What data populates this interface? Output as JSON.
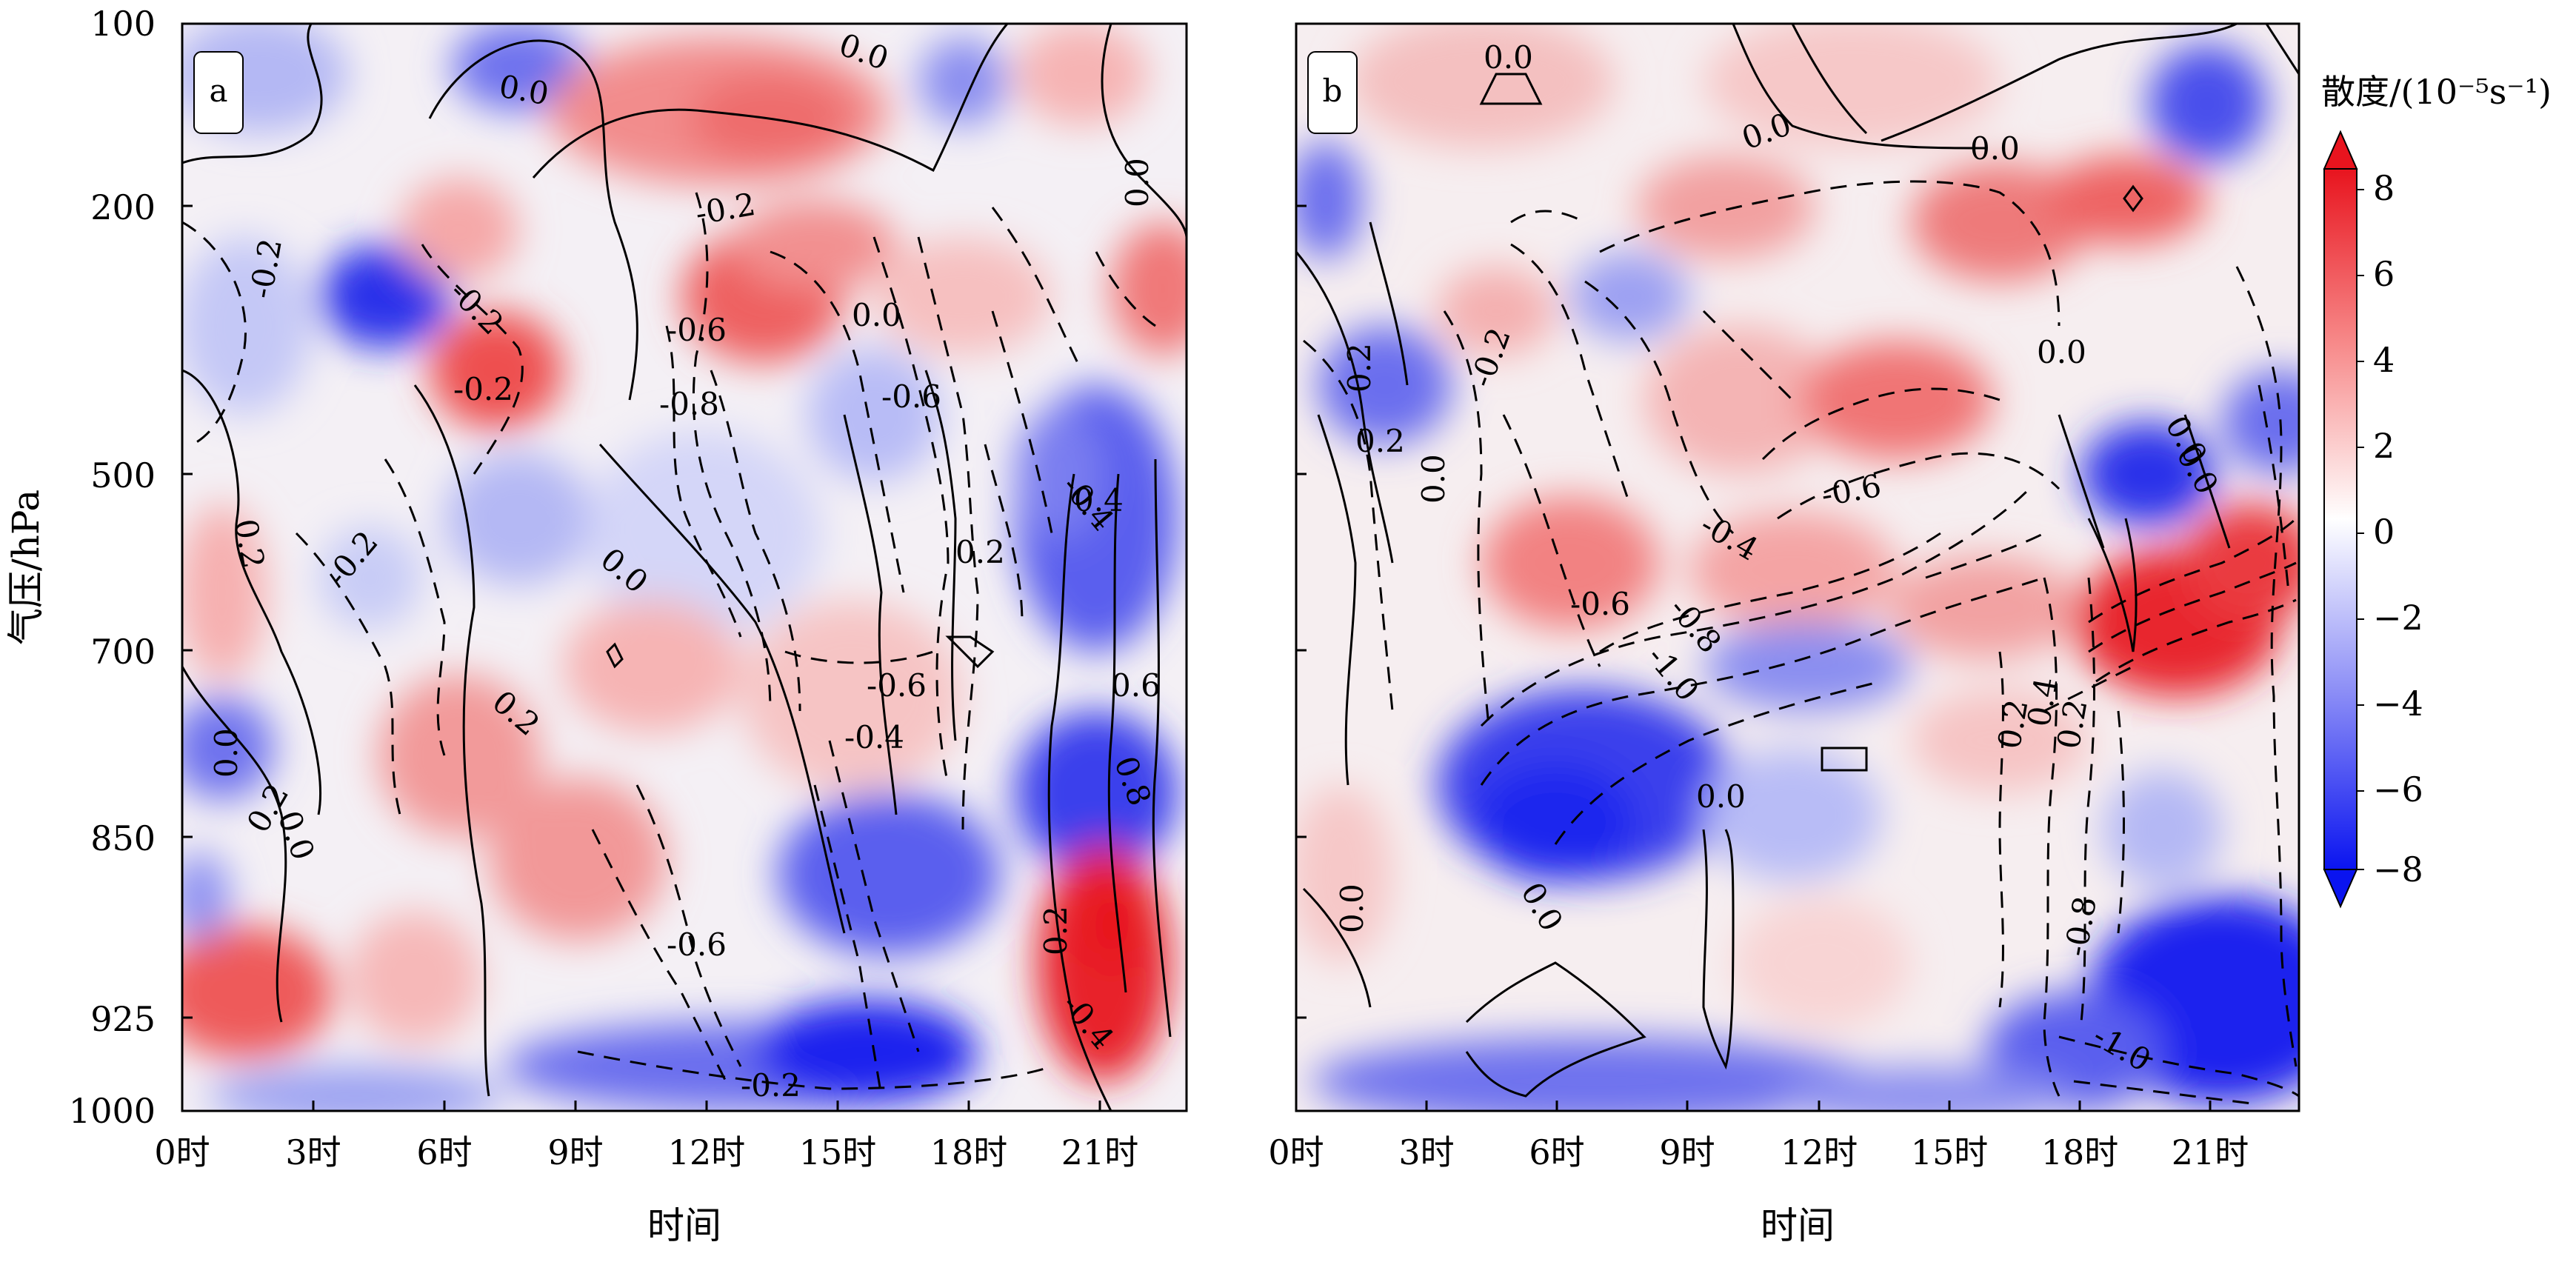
{
  "chart_data": [
    {
      "type": "heatmap",
      "panel_label": "a",
      "xlabel": "时间",
      "ylabel": "气压/hPa",
      "x_ticks": [
        "0时",
        "3时",
        "6时",
        "9时",
        "12时",
        "15时",
        "18时",
        "21时"
      ],
      "y_ticks": [
        "100",
        "200",
        "500",
        "700",
        "850",
        "925",
        "1000"
      ],
      "xlim": [
        0,
        23
      ],
      "ylim": [
        1000,
        100
      ],
      "fill_variable": "散度",
      "contour_style": {
        "positive": "solid",
        "negative": "dashed"
      },
      "contour_labels": [
        "0.0",
        "0.0",
        "0.0",
        "0.0",
        "0.0",
        "0.0",
        "0.0",
        "-0.2",
        "-0.2",
        "-0.2",
        "-0.2",
        "-0.2",
        "-0.2",
        "0.2",
        "0.2",
        "0.2",
        "0.2",
        "0.2",
        "-0.4",
        "-0.4",
        "-0.4",
        "-0.6",
        "-0.6",
        "-0.6",
        "-0.6",
        "-0.8",
        "0.6",
        "0.8",
        "0.4"
      ]
    },
    {
      "type": "heatmap",
      "panel_label": "b",
      "xlabel": "时间",
      "ylabel": "",
      "x_ticks": [
        "0时",
        "3时",
        "6时",
        "9时",
        "12时",
        "15时",
        "18时",
        "21时"
      ],
      "xlim": [
        0,
        23
      ],
      "ylim": [
        1000,
        100
      ],
      "fill_variable": "散度",
      "contour_style": {
        "positive": "solid",
        "negative": "dashed"
      },
      "contour_labels": [
        "0.0",
        "0.0",
        "0.0",
        "0.0",
        "0.0",
        "0.0",
        "0.0",
        "0.0",
        "0.0",
        "-0.2",
        "0.2",
        "0.2",
        "-0.4",
        "-0.6",
        "-0.6",
        "-0.8",
        "-1.0",
        "-0.8",
        "-1.0",
        "0.2",
        "0.4",
        "0.2",
        "0.0"
      ]
    }
  ],
  "colorbar": {
    "label": "散度/(10⁻⁵s⁻¹)",
    "ticks": [
      "8",
      "6",
      "4",
      "2",
      "0",
      "−2",
      "−4",
      "−6",
      "−8"
    ],
    "vmin": -8,
    "vmax": 8,
    "colors": {
      "min": "#0a14f0",
      "mid": "#ffffff",
      "max": "#e8141e"
    }
  }
}
